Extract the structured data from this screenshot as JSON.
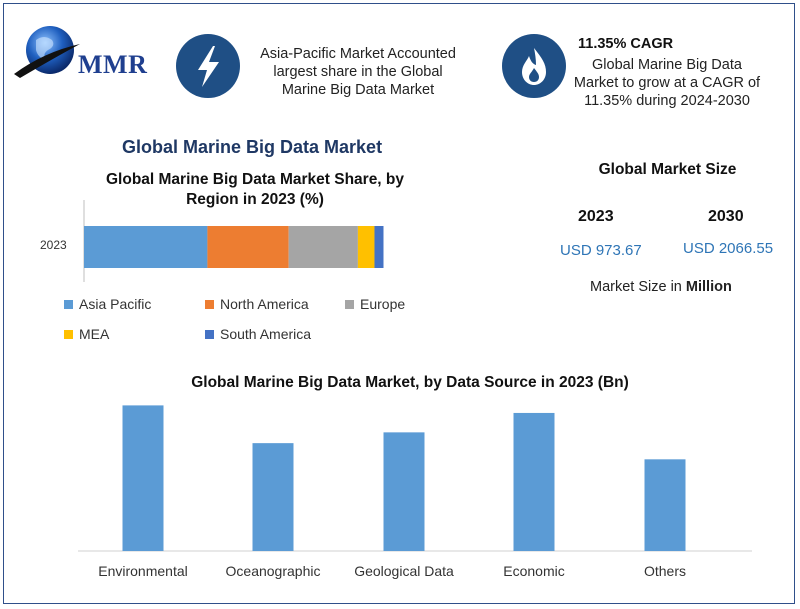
{
  "header": {
    "logo_text": "MMR",
    "highlight1": {
      "icon": "lightning-icon",
      "lines": [
        "Asia-Pacific Market Accounted",
        "largest share in the Global",
        "Marine Big Data Market"
      ]
    },
    "highlight2": {
      "icon": "flame-icon",
      "title": "11.35% CAGR",
      "lines": [
        "Global Marine Big Data",
        "Market to grow at a CAGR of",
        "11.35% during 2024-2030"
      ]
    }
  },
  "colors": {
    "asia_pacific": "#5b9bd5",
    "north_america": "#ed7d31",
    "europe": "#a5a5a5",
    "mea": "#ffc000",
    "south_america": "#4472c4",
    "bars": "#5b9bd5",
    "icon_bg": "#1f4f85",
    "value_text": "#2e75b6"
  },
  "main_title": "Global Marine Big Data Market",
  "market_size": {
    "title": "Global Market Size",
    "years": [
      "2023",
      "2030"
    ],
    "values": [
      "USD 973.67",
      "USD 2066.55"
    ],
    "unit_prefix": "Market Size in ",
    "unit_bold": "Million"
  },
  "chart_data": [
    {
      "type": "bar",
      "orientation": "horizontal-stacked",
      "title_lines": [
        "Global Marine Big Data Market Share, by",
        "Region in 2023 (%)"
      ],
      "categories": [
        "2023"
      ],
      "series": [
        {
          "name": "Asia Pacific",
          "values": [
            41
          ]
        },
        {
          "name": "North America",
          "values": [
            27
          ]
        },
        {
          "name": "Europe",
          "values": [
            23
          ]
        },
        {
          "name": "MEA",
          "values": [
            5.5
          ]
        },
        {
          "name": "South America",
          "values": [
            3
          ]
        }
      ],
      "legend_placement": "bottom",
      "grid": false
    },
    {
      "type": "bar",
      "title": "Global Marine Big Data Market, by Data Source in 2023 (Bn)",
      "categories": [
        "Environmental",
        "Oceanographic",
        "Geological Data",
        "Economic",
        "Others"
      ],
      "values": [
        135,
        100,
        110,
        128,
        85
      ],
      "ylim": [
        0,
        140
      ],
      "grid": false
    }
  ]
}
